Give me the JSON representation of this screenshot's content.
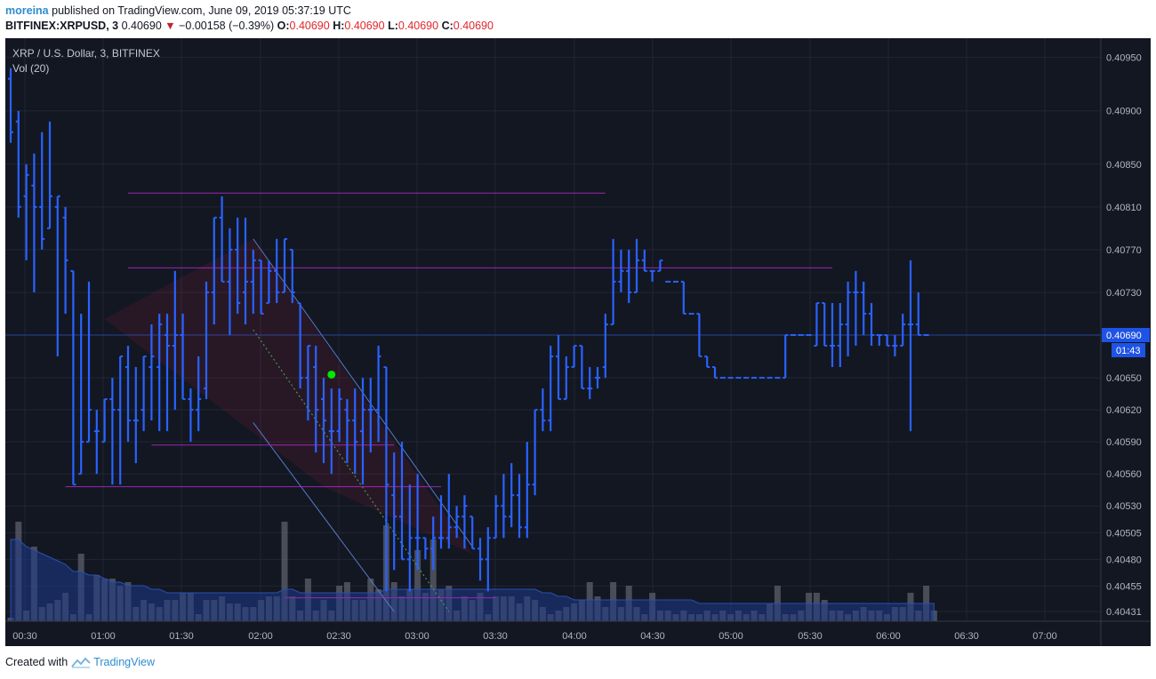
{
  "header": {
    "user": "moreina",
    "published": "published on TradingView.com, June 09, 2019 05:37:19 UTC",
    "symbol": "BITFINEX:XRPUSD, 3",
    "last": "0.40690",
    "arrow": "▼",
    "change": "−0.00158 (−0.39%)",
    "o_label": "O:",
    "o_value": "0.40690",
    "h_label": "H:",
    "h_value": "0.40690",
    "l_label": "L:",
    "l_value": "0.40690",
    "c_label": "C:",
    "c_value": "0.40690"
  },
  "overlay": {
    "title": "XRP / U.S. Dollar, 3, BITFINEX",
    "vol": "Vol (20)"
  },
  "footer": {
    "created_with": "Created with",
    "brand": "TradingView"
  },
  "colors": {
    "background": "#131722",
    "bar": "#2962ff",
    "volume": "#5d606b",
    "volume_ma": "#1e3a8a",
    "hline": "#9c27b0",
    "channel": "#5b78c4",
    "price_label": "#1e53e5",
    "marker": "#00e600"
  },
  "chart_data": {
    "type": "ohlc",
    "symbol": "XRP / U.S. Dollar",
    "interval": "3",
    "exchange": "BITFINEX",
    "x_ticks": [
      "00:30",
      "01:00",
      "01:30",
      "02:00",
      "02:30",
      "03:00",
      "03:30",
      "04:00",
      "04:30",
      "05:00",
      "05:30",
      "06:00",
      "06:30",
      "07:00"
    ],
    "y_ticks": [
      "0.40950",
      "0.40900",
      "0.40850",
      "0.40810",
      "0.40770",
      "0.40730",
      "0.40690",
      "0.40650",
      "0.40620",
      "0.40590",
      "0.40560",
      "0.40530",
      "0.40505",
      "0.40480",
      "0.40455",
      "0.40431"
    ],
    "last_price_label": "0.40690",
    "countdown_label": "01:43",
    "horizontal_levels": [
      0.40823,
      0.40753,
      0.40587,
      0.40548,
      0.40444
    ],
    "ohlc": [
      [
        0.4093,
        0.4094,
        0.4087,
        0.4088
      ],
      [
        0.4089,
        0.409,
        0.408,
        0.4081
      ],
      [
        0.4082,
        0.4085,
        0.4076,
        0.4084
      ],
      [
        0.4083,
        0.4086,
        0.4073,
        0.4081
      ],
      [
        0.4081,
        0.4088,
        0.4077,
        0.4078
      ],
      [
        0.4079,
        0.4089,
        0.4079,
        0.4082
      ],
      [
        0.4081,
        0.4082,
        0.4067,
        0.4082
      ],
      [
        0.408,
        0.4081,
        0.4071,
        0.4076
      ],
      [
        0.4075,
        0.4075,
        0.4055,
        0.4055
      ],
      [
        0.4056,
        0.4071,
        0.4056,
        0.4059
      ],
      [
        0.4059,
        0.4074,
        0.4059,
        0.4062
      ],
      [
        0.406,
        0.4062,
        0.4056,
        0.406
      ],
      [
        0.4059,
        0.4063,
        0.4059,
        0.4063
      ],
      [
        0.4063,
        0.4065,
        0.4055,
        0.4062
      ],
      [
        0.4062,
        0.4067,
        0.4055,
        0.4067
      ],
      [
        0.4066,
        0.4068,
        0.4059,
        0.4061
      ],
      [
        0.4061,
        0.4066,
        0.4057,
        0.4061
      ],
      [
        0.4062,
        0.4067,
        0.406,
        0.4067
      ],
      [
        0.4066,
        0.407,
        0.4061,
        0.4067
      ],
      [
        0.4066,
        0.4071,
        0.406,
        0.407
      ],
      [
        0.4069,
        0.4071,
        0.406,
        0.4068
      ],
      [
        0.4068,
        0.4075,
        0.4062,
        0.4069
      ],
      [
        0.4069,
        0.4071,
        0.4063,
        0.4063
      ],
      [
        0.4063,
        0.4064,
        0.4059,
        0.4062
      ],
      [
        0.4062,
        0.4067,
        0.406,
        0.4063
      ],
      [
        0.4064,
        0.4074,
        0.4063,
        0.4073
      ],
      [
        0.4073,
        0.408,
        0.407,
        0.408
      ],
      [
        0.408,
        0.4082,
        0.4074,
        0.4074
      ],
      [
        0.4074,
        0.4079,
        0.4069,
        0.4077
      ],
      [
        0.4077,
        0.408,
        0.4071,
        0.4072
      ],
      [
        0.4073,
        0.408,
        0.407,
        0.4074
      ],
      [
        0.4074,
        0.4077,
        0.4071,
        0.4076
      ],
      [
        0.4076,
        0.4076,
        0.4071,
        0.4071
      ],
      [
        0.4072,
        0.4076,
        0.4072,
        0.4075
      ],
      [
        0.4075,
        0.4078,
        0.4072,
        0.4073
      ],
      [
        0.4073,
        0.4078,
        0.4073,
        0.4078
      ],
      [
        0.4077,
        0.4077,
        0.4072,
        0.4073
      ],
      [
        0.4072,
        0.4072,
        0.4064,
        0.4065
      ],
      [
        0.4065,
        0.4068,
        0.4061,
        0.4068
      ],
      [
        0.4066,
        0.4068,
        0.4058,
        0.4062
      ],
      [
        0.4063,
        0.4065,
        0.4057,
        0.4061
      ],
      [
        0.406,
        0.4064,
        0.4056,
        0.406
      ],
      [
        0.406,
        0.4064,
        0.4059,
        0.4063
      ],
      [
        0.4062,
        0.4063,
        0.4057,
        0.4061
      ],
      [
        0.4061,
        0.4064,
        0.4056,
        0.4059
      ],
      [
        0.406,
        0.4065,
        0.4055,
        0.4062
      ],
      [
        0.4062,
        0.4065,
        0.4058,
        0.4062
      ],
      [
        0.4062,
        0.4068,
        0.4059,
        0.4067
      ],
      [
        0.4066,
        0.4066,
        0.4045,
        0.4055
      ],
      [
        0.4054,
        0.4058,
        0.4047,
        0.4052
      ],
      [
        0.4052,
        0.4059,
        0.4048,
        0.4048
      ],
      [
        0.4048,
        0.4055,
        0.4045,
        0.405
      ],
      [
        0.405,
        0.4056,
        0.4047,
        0.405
      ],
      [
        0.405,
        0.405,
        0.4048,
        0.4049
      ],
      [
        0.4049,
        0.4052,
        0.4047,
        0.405
      ],
      [
        0.405,
        0.4054,
        0.4049,
        0.405
      ],
      [
        0.405,
        0.4056,
        0.4049,
        0.4051
      ],
      [
        0.4051,
        0.4053,
        0.405,
        0.4052
      ],
      [
        0.4052,
        0.4054,
        0.4049,
        0.4053
      ],
      [
        0.4052,
        0.4052,
        0.4049,
        0.4049
      ],
      [
        0.4049,
        0.405,
        0.4046,
        0.4048
      ],
      [
        0.4048,
        0.4051,
        0.4045,
        0.405
      ],
      [
        0.405,
        0.4054,
        0.405,
        0.4053
      ],
      [
        0.4053,
        0.4056,
        0.405,
        0.4052
      ],
      [
        0.4052,
        0.4057,
        0.4051,
        0.4054
      ],
      [
        0.4054,
        0.4056,
        0.405,
        0.4051
      ],
      [
        0.4051,
        0.4059,
        0.405,
        0.4055
      ],
      [
        0.4055,
        0.4062,
        0.4054,
        0.4062
      ],
      [
        0.4062,
        0.4064,
        0.406,
        0.4061
      ],
      [
        0.4061,
        0.4068,
        0.406,
        0.4067
      ],
      [
        0.4067,
        0.4069,
        0.4063,
        0.4063
      ],
      [
        0.4063,
        0.4067,
        0.4063,
        0.4066
      ],
      [
        0.4066,
        0.4068,
        0.4066,
        0.4068
      ],
      [
        0.4068,
        0.4068,
        0.4064,
        0.4064
      ],
      [
        0.4064,
        0.4066,
        0.4063,
        0.4064
      ],
      [
        0.4065,
        0.4066,
        0.4064,
        0.4065
      ],
      [
        0.4066,
        0.4071,
        0.4065,
        0.407
      ],
      [
        0.407,
        0.4078,
        0.407,
        0.4074
      ],
      [
        0.4074,
        0.4077,
        0.4073,
        0.4075
      ],
      [
        0.4075,
        0.4077,
        0.4072,
        0.4073
      ],
      [
        0.4073,
        0.4078,
        0.4073,
        0.4076
      ],
      [
        0.4076,
        0.4077,
        0.4075,
        0.4075
      ],
      [
        0.4075,
        0.4075,
        0.4074,
        0.4075
      ],
      [
        0.4075,
        0.4076,
        0.4075,
        0.4076
      ],
      [
        0.4074,
        0.4074,
        0.4074,
        0.4074
      ],
      [
        0.4074,
        0.4074,
        0.4074,
        0.4074
      ],
      [
        0.4074,
        0.4074,
        0.4071,
        0.4071
      ],
      [
        0.4071,
        0.4071,
        0.4071,
        0.4071
      ],
      [
        0.4071,
        0.4071,
        0.4067,
        0.4067
      ],
      [
        0.4067,
        0.4067,
        0.4066,
        0.4066
      ],
      [
        0.4066,
        0.4066,
        0.4065,
        0.4065
      ],
      [
        0.4065,
        0.4065,
        0.4065,
        0.4065
      ],
      [
        0.4065,
        0.4065,
        0.4065,
        0.4065
      ],
      [
        0.4065,
        0.4065,
        0.4065,
        0.4065
      ],
      [
        0.4065,
        0.4065,
        0.4065,
        0.4065
      ],
      [
        0.4065,
        0.4065,
        0.4065,
        0.4065
      ],
      [
        0.4065,
        0.4065,
        0.4065,
        0.4065
      ],
      [
        0.4065,
        0.4065,
        0.4065,
        0.4065
      ],
      [
        0.4065,
        0.4065,
        0.4065,
        0.4065
      ],
      [
        0.4065,
        0.4069,
        0.4065,
        0.4069
      ],
      [
        0.4069,
        0.4069,
        0.4069,
        0.4069
      ],
      [
        0.4069,
        0.4069,
        0.4069,
        0.4069
      ],
      [
        0.4069,
        0.4069,
        0.4069,
        0.4069
      ],
      [
        0.4068,
        0.4072,
        0.4068,
        0.4072
      ],
      [
        0.4072,
        0.4072,
        0.4068,
        0.4068
      ],
      [
        0.4068,
        0.4072,
        0.4066,
        0.4068
      ],
      [
        0.4068,
        0.4072,
        0.4066,
        0.407
      ],
      [
        0.407,
        0.4074,
        0.4067,
        0.4073
      ],
      [
        0.4073,
        0.4075,
        0.4068,
        0.4073
      ],
      [
        0.4073,
        0.4074,
        0.4069,
        0.4071
      ],
      [
        0.4071,
        0.4072,
        0.4068,
        0.4069
      ],
      [
        0.4069,
        0.4069,
        0.4068,
        0.4069
      ],
      [
        0.4069,
        0.4069,
        0.4068,
        0.4068
      ],
      [
        0.4068,
        0.4069,
        0.4067,
        0.4068
      ],
      [
        0.4068,
        0.4071,
        0.4068,
        0.407
      ],
      [
        0.407,
        0.4076,
        0.406,
        0.407
      ],
      [
        0.407,
        0.4073,
        0.4069,
        0.4069
      ],
      [
        0.4069,
        0.4069,
        0.4069,
        0.4069
      ]
    ],
    "volume": [
      1,
      28,
      3,
      21,
      4,
      5,
      6,
      8,
      2,
      19,
      2,
      13,
      12,
      12,
      10,
      11,
      4,
      6,
      5,
      4,
      6,
      6,
      8,
      8,
      2,
      6,
      6,
      7,
      5,
      5,
      4,
      4,
      6,
      7,
      7,
      28,
      7,
      3,
      12,
      3,
      6,
      3,
      10,
      11,
      6,
      6,
      12,
      9,
      27,
      11,
      7,
      9,
      20,
      8,
      23,
      9,
      10,
      3,
      7,
      6,
      8,
      2,
      7,
      7,
      7,
      5,
      7,
      6,
      4,
      2,
      3,
      4,
      5,
      6,
      11,
      7,
      4,
      11,
      4,
      10,
      4,
      2,
      8,
      3,
      3,
      2,
      3,
      2,
      2,
      3,
      2,
      3,
      2,
      3,
      2,
      3,
      2,
      5,
      10,
      2,
      2,
      3,
      8,
      8,
      6,
      3,
      3,
      2,
      3,
      4,
      3,
      3,
      2,
      4,
      4,
      8,
      3,
      10,
      3
    ],
    "volume_ma": [
      23,
      23,
      21,
      20,
      19,
      18,
      17,
      16,
      14,
      14,
      13,
      13,
      12,
      11,
      11,
      10,
      10,
      10,
      9,
      9,
      8,
      8,
      8,
      8,
      8,
      8,
      8,
      8,
      8,
      8,
      8,
      8,
      8,
      8,
      8,
      9,
      9,
      8,
      8,
      8,
      8,
      8,
      8,
      8,
      8,
      8,
      8,
      8,
      9,
      9,
      9,
      9,
      9,
      9,
      9,
      9,
      9,
      9,
      9,
      9,
      9,
      9,
      9,
      9,
      9,
      9,
      9,
      9,
      8,
      8,
      7,
      7,
      6,
      6,
      6,
      6,
      6,
      6,
      6,
      6,
      6,
      6,
      6,
      6,
      6,
      6,
      6,
      6,
      5,
      5,
      5,
      5,
      5,
      5,
      5,
      5,
      5,
      5,
      5,
      5,
      5,
      5,
      5,
      5,
      5,
      5,
      5,
      5,
      5,
      5,
      5,
      5,
      5,
      5,
      5,
      5,
      5,
      5,
      5
    ]
  }
}
